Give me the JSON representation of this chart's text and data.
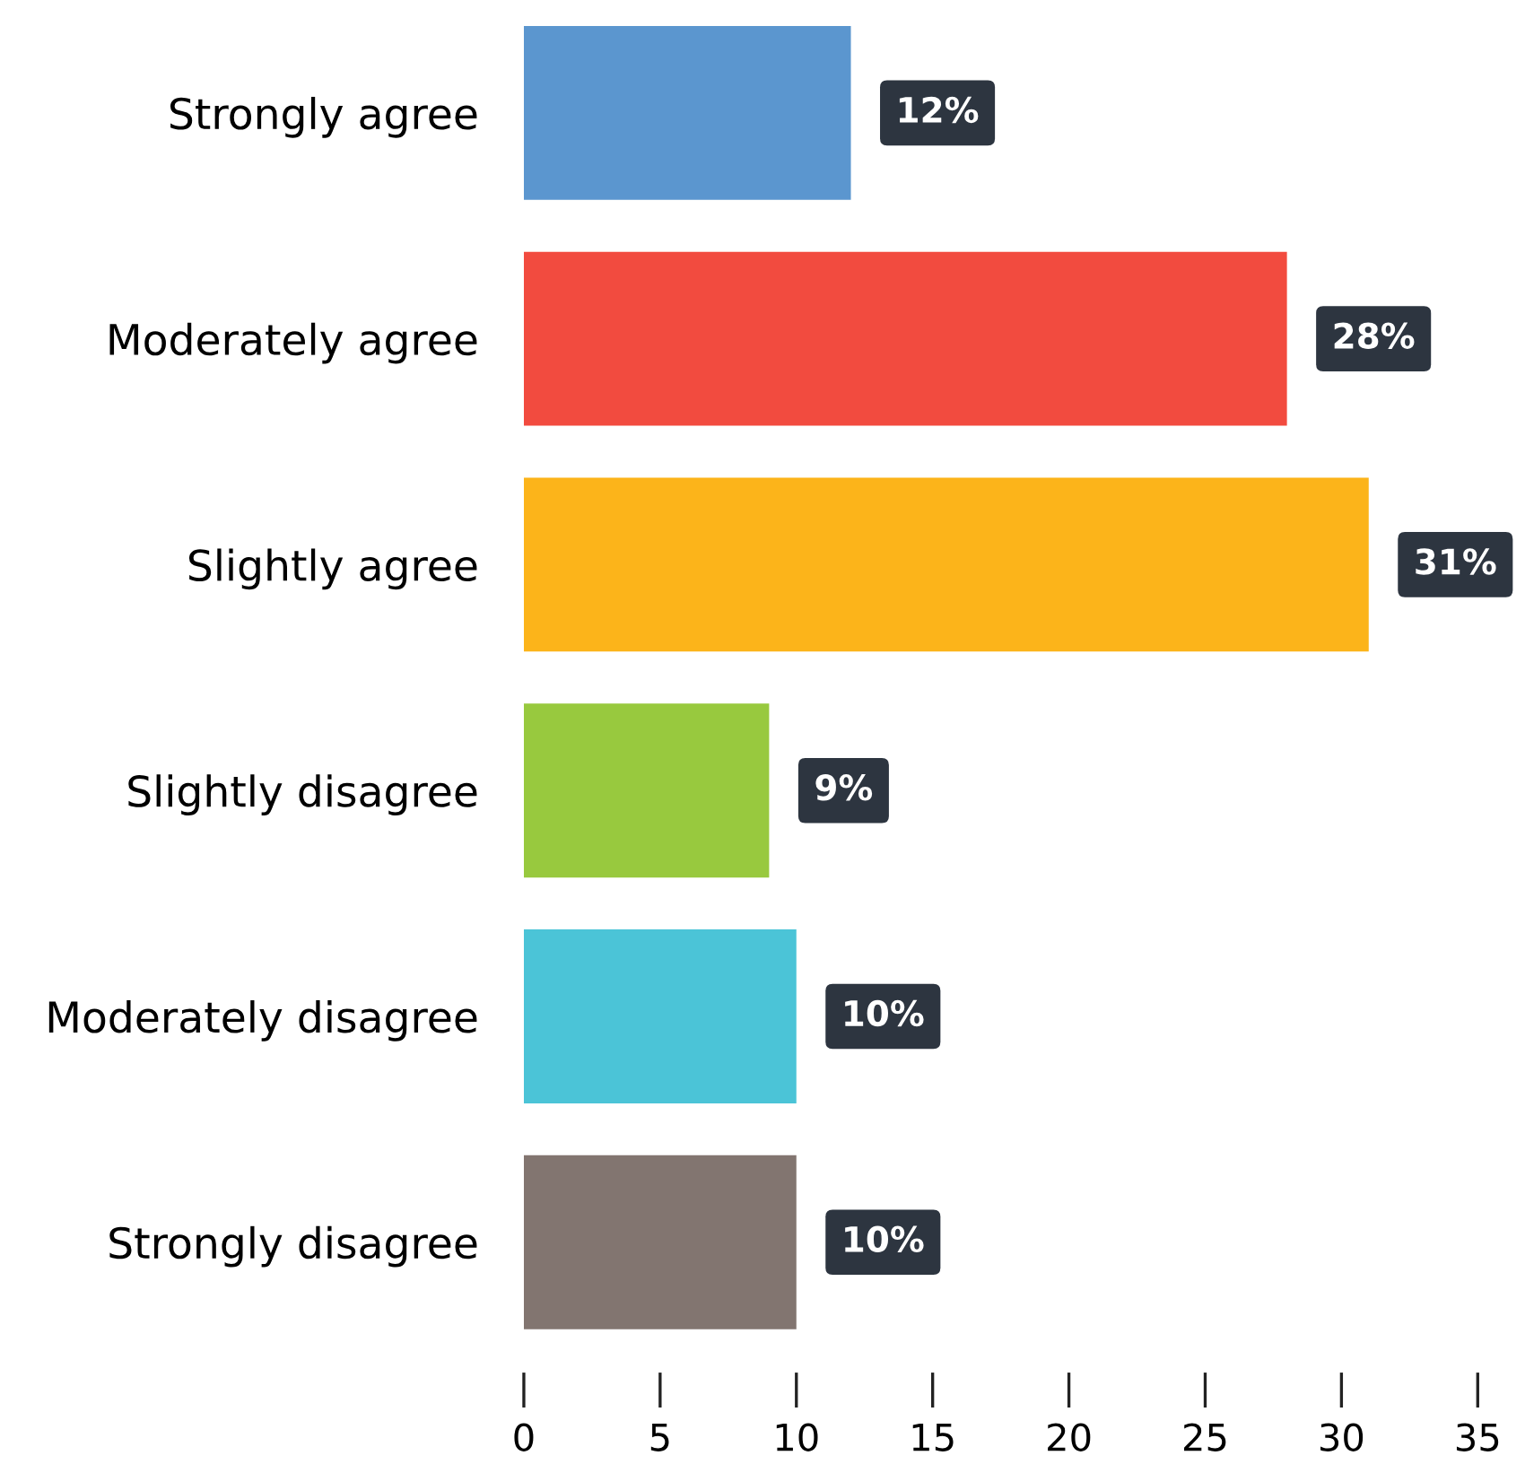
{
  "chart_data": {
    "type": "bar",
    "orientation": "horizontal",
    "categories": [
      "Strongly agree",
      "Moderately agree",
      "Slightly agree",
      "Slightly disagree",
      "Moderately disagree",
      "Strongly disagree"
    ],
    "values": [
      12,
      28,
      31,
      9,
      10,
      10
    ],
    "colors": [
      "#5b96cf",
      "#f24b3f",
      "#fcb41a",
      "#98c93e",
      "#4bc4d7",
      "#827570"
    ],
    "value_labels": [
      "12%",
      "28%",
      "31%",
      "9%",
      "10%",
      "10%"
    ],
    "xlim": [
      0,
      35
    ],
    "xticks": [
      0,
      5,
      10,
      15,
      20,
      25,
      30,
      35
    ],
    "grid": false,
    "legend": false
  }
}
